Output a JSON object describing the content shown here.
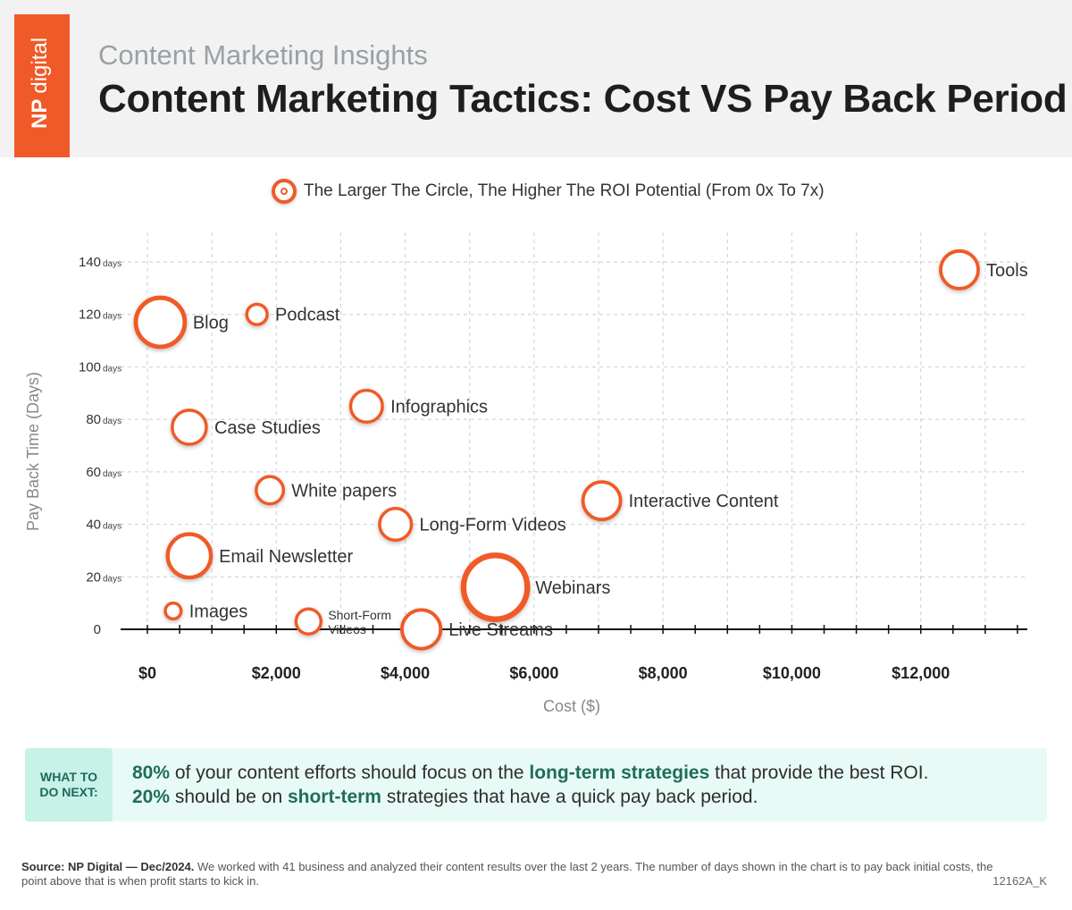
{
  "header": {
    "logo_np": "NP",
    "logo_digital": "digital",
    "subtitle": "Content Marketing Insights",
    "title": "Content Marketing Tactics: Cost VS Pay Back Period"
  },
  "legend": {
    "text": "The Larger The Circle, The Higher The ROI Potential (From 0x To 7x)"
  },
  "chart_data": {
    "type": "scatter",
    "xlabel": "Cost ($)",
    "ylabel": "Pay Back Time (Days)",
    "xlim": [
      -500,
      13500
    ],
    "ylim": [
      0,
      140
    ],
    "x_ticks": [
      0,
      2000,
      4000,
      6000,
      8000,
      10000,
      12000
    ],
    "x_tick_labels": [
      "$0",
      "$2,000",
      "$4,000",
      "$6,000",
      "$8,000",
      "$10,000",
      "$12,000"
    ],
    "y_ticks": [
      0,
      20,
      40,
      60,
      80,
      100,
      120,
      140
    ],
    "y_tick_labels": [
      "0",
      "20",
      "40",
      "60",
      "80",
      "100",
      "120",
      "140"
    ],
    "y_tick_unit": "days",
    "grid": true,
    "marker_color": "#f05a28",
    "points": [
      {
        "label": "Tools",
        "x": 12600,
        "y": 137,
        "roi": 2.5
      },
      {
        "label": "Blog",
        "x": 200,
        "y": 117,
        "roi": 3.5
      },
      {
        "label": "Podcast",
        "x": 1700,
        "y": 120,
        "roi": 1.0
      },
      {
        "label": "Infographics",
        "x": 3400,
        "y": 85,
        "roi": 2.0
      },
      {
        "label": "Case Studies",
        "x": 650,
        "y": 77,
        "roi": 2.2
      },
      {
        "label": "White papers",
        "x": 1900,
        "y": 53,
        "roi": 1.6
      },
      {
        "label": "Interactive Content",
        "x": 7050,
        "y": 49,
        "roi": 2.5
      },
      {
        "label": "Long-Form Videos",
        "x": 3850,
        "y": 40,
        "roi": 2.0
      },
      {
        "label": "Email Newsletter",
        "x": 650,
        "y": 28,
        "roi": 3.0
      },
      {
        "label": "Webinars",
        "x": 5400,
        "y": 16,
        "roi": 4.8
      },
      {
        "label": "Images",
        "x": 400,
        "y": 7,
        "roi": 0.6
      },
      {
        "label": "Short-Form Videos",
        "x": 2500,
        "y": 3,
        "roi": 1.4
      },
      {
        "label": "Live Streams",
        "x": 4250,
        "y": 0,
        "roi": 2.6
      }
    ]
  },
  "callout": {
    "tag": "WHAT TO\nDO NEXT:",
    "line1_bold1": "80%",
    "line1_mid": " of your content efforts should focus on the ",
    "line1_bold2": "long-term strategies",
    "line1_end": " that provide the best ROI.",
    "line2_bold1": "20%",
    "line2_mid": " should be on ",
    "line2_bold2": "short-term",
    "line2_end": " strategies that have a quick pay back period."
  },
  "footer": {
    "source_label": "Source:  NP Digital — Dec/2024.",
    "source_text": " We worked with 41 business and analyzed their content results over the last 2 years. The number of days shown in the chart is to pay back initial costs, the point above that is when profit starts to kick in.",
    "code": "12162A_K"
  }
}
